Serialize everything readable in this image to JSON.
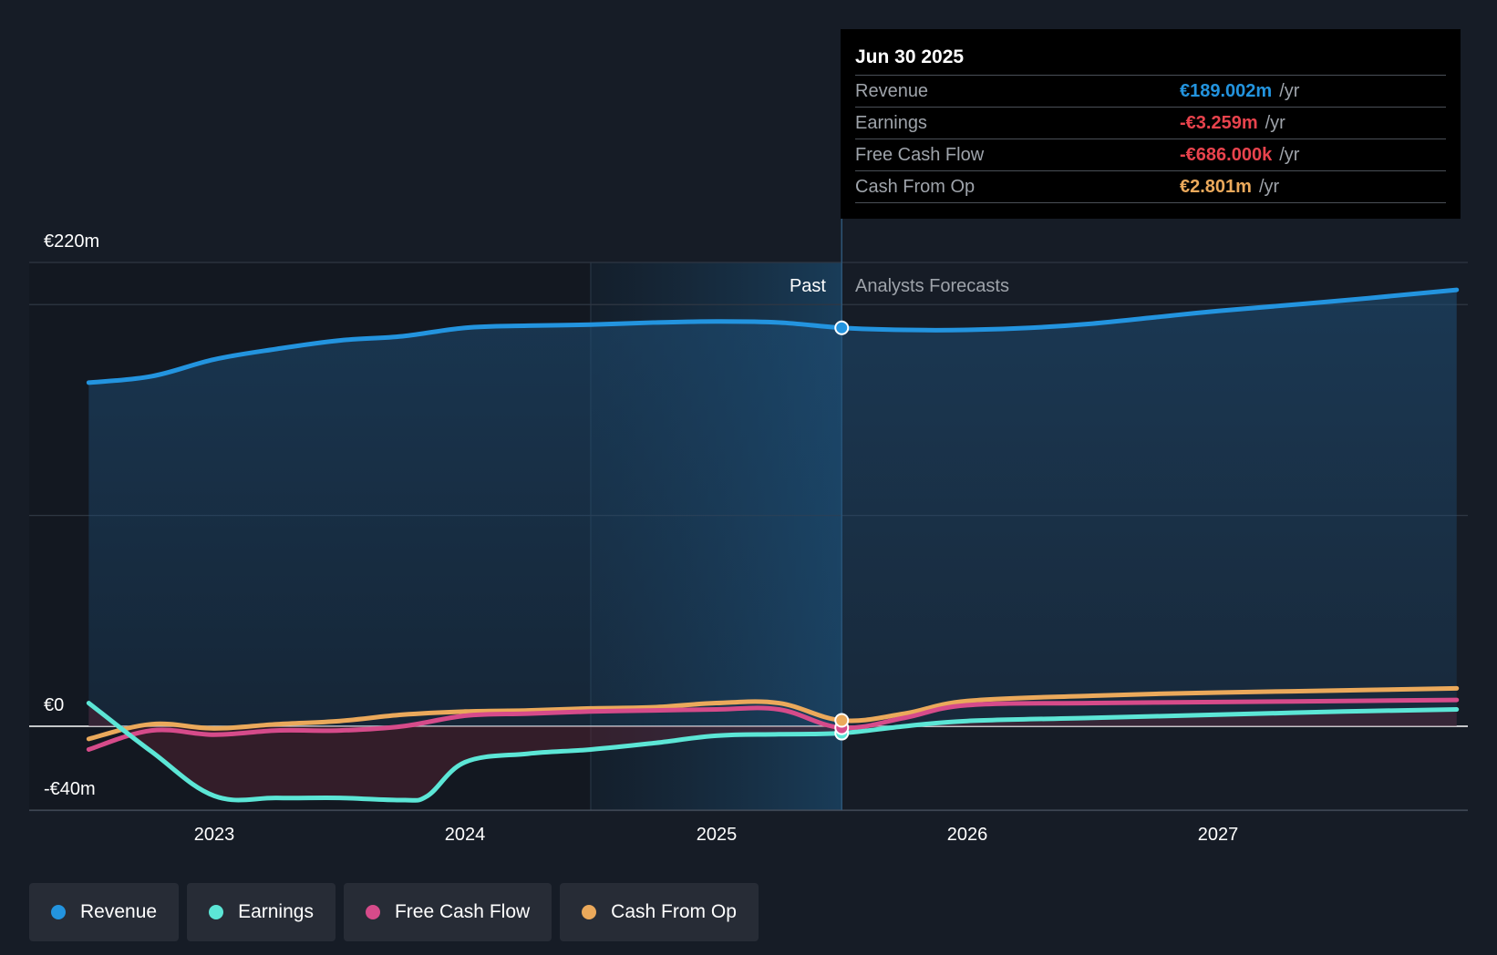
{
  "chart_data": {
    "type": "area",
    "y_axis": {
      "ylim": [
        -40,
        220
      ],
      "tick_labels": [
        "€220m",
        "€0",
        "-€40m"
      ]
    },
    "x_axis": {
      "tick_labels": [
        "2023",
        "2024",
        "2025",
        "2026",
        "2027"
      ],
      "xlim": [
        2022.5,
        2027.95
      ]
    },
    "regions": {
      "past_label": "Past",
      "forecast_label": "Analysts Forecasts",
      "divider_x": 2025.5
    },
    "series": [
      {
        "name": "Revenue",
        "color": "#2394df",
        "x": [
          2022.5,
          2022.75,
          2023.0,
          2023.25,
          2023.5,
          2023.75,
          2024.0,
          2024.25,
          2024.5,
          2024.75,
          2025.0,
          2025.25,
          2025.5,
          2025.75,
          2026.0,
          2026.25,
          2026.5,
          2026.75,
          2027.0,
          2027.5,
          2027.95
        ],
        "values": [
          163,
          166,
          174,
          179,
          183,
          185,
          189,
          190,
          190.5,
          191.5,
          192,
          191.5,
          189,
          188,
          188,
          189,
          191,
          194,
          197,
          202,
          207
        ]
      },
      {
        "name": "Earnings",
        "color": "#5ce6d6",
        "x": [
          2022.5,
          2022.75,
          2023.0,
          2023.25,
          2023.5,
          2023.75,
          2023.85,
          2024.0,
          2024.25,
          2024.5,
          2024.75,
          2025.0,
          2025.25,
          2025.5,
          2025.75,
          2026.0,
          2026.5,
          2027.0,
          2027.5,
          2027.95
        ],
        "values": [
          11,
          -12,
          -33,
          -34,
          -34,
          -35,
          -33,
          -17,
          -13,
          -11,
          -8,
          -4.5,
          -3.8,
          -3.26,
          0,
          2.5,
          4,
          5.5,
          7,
          8
        ]
      },
      {
        "name": "Free Cash Flow",
        "color": "#d64b8a",
        "x": [
          2022.5,
          2022.75,
          2023.0,
          2023.25,
          2023.5,
          2023.75,
          2024.0,
          2024.25,
          2024.5,
          2024.75,
          2025.0,
          2025.25,
          2025.5,
          2025.75,
          2026.0,
          2026.5,
          2027.0,
          2027.5,
          2027.95
        ],
        "values": [
          -11,
          -2,
          -4,
          -2,
          -2,
          0,
          5,
          6,
          7,
          7.5,
          8,
          8,
          -0.686,
          4,
          10,
          11,
          11.5,
          12,
          12.5
        ]
      },
      {
        "name": "Cash From Op",
        "color": "#eba95b",
        "x": [
          2022.5,
          2022.75,
          2023.0,
          2023.25,
          2023.5,
          2023.75,
          2024.0,
          2024.25,
          2024.5,
          2024.75,
          2025.0,
          2025.25,
          2025.5,
          2025.75,
          2026.0,
          2026.5,
          2027.0,
          2027.5,
          2027.95
        ],
        "values": [
          -6,
          1,
          -1,
          1,
          2.5,
          5.5,
          7,
          7.5,
          8.5,
          9,
          11,
          11,
          2.8,
          6,
          12,
          14.5,
          16,
          17,
          18
        ]
      }
    ]
  },
  "tooltip": {
    "date": "Jun 30 2025",
    "rows": [
      {
        "label": "Revenue",
        "value": "€189.002m",
        "unit": "/yr",
        "color": "#2394df"
      },
      {
        "label": "Earnings",
        "value": "-€3.259m",
        "unit": "/yr",
        "color": "#e8434d"
      },
      {
        "label": "Free Cash Flow",
        "value": "-€686.000k",
        "unit": "/yr",
        "color": "#e8434d"
      },
      {
        "label": "Cash From Op",
        "value": "€2.801m",
        "unit": "/yr",
        "color": "#eba95b"
      }
    ]
  },
  "legend": [
    {
      "label": "Revenue",
      "color": "#2394df"
    },
    {
      "label": "Earnings",
      "color": "#5ce6d6"
    },
    {
      "label": "Free Cash Flow",
      "color": "#d64b8a"
    },
    {
      "label": "Cash From Op",
      "color": "#eba95b"
    }
  ]
}
